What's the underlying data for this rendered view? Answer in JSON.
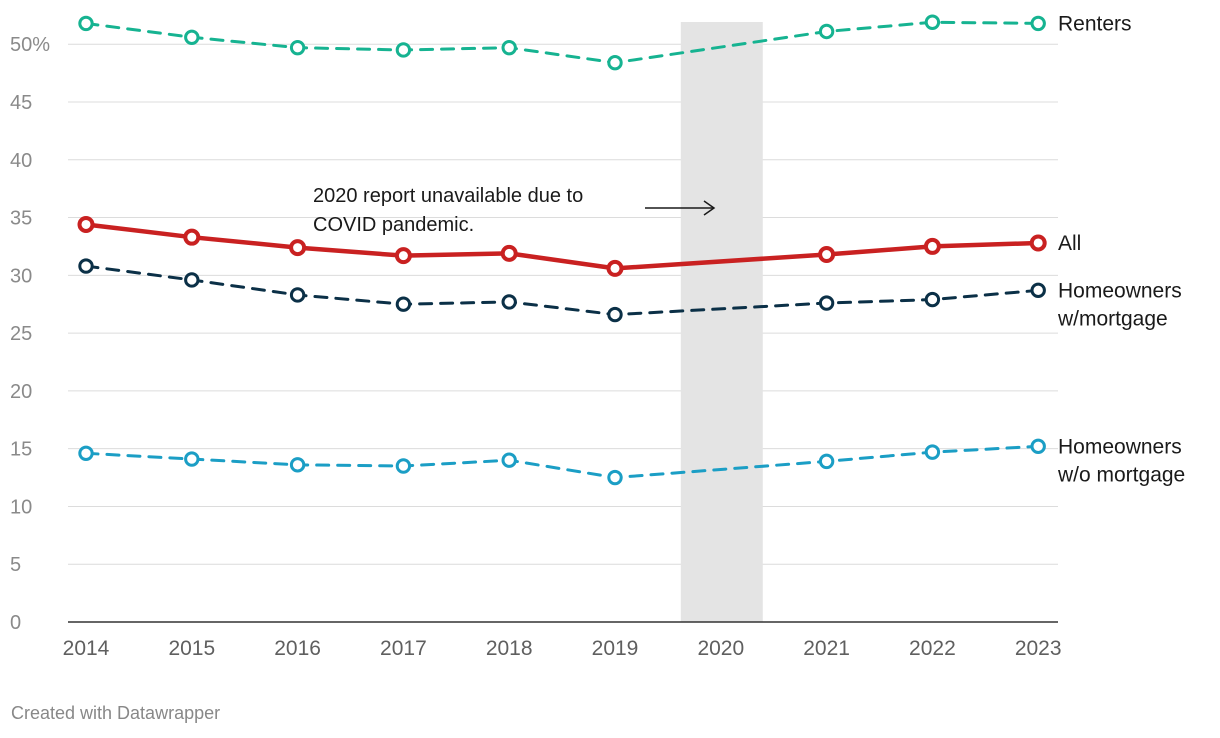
{
  "chart_data": {
    "type": "line",
    "title": "",
    "xlabel": "",
    "ylabel": "",
    "ylim": [
      0,
      52
    ],
    "y_ticks": [
      0,
      5,
      10,
      15,
      20,
      25,
      30,
      35,
      40,
      45,
      50
    ],
    "y_tick_labels": [
      "0",
      "5",
      "10",
      "15",
      "20",
      "25",
      "30",
      "35",
      "40",
      "45",
      "50%"
    ],
    "categories": [
      "2014",
      "2015",
      "2016",
      "2017",
      "2018",
      "2019",
      "2020",
      "2021",
      "2022",
      "2023"
    ],
    "series": [
      {
        "name": "Renters",
        "label_lines": [
          "Renters"
        ],
        "color": "#16b391",
        "dashed": true,
        "values": [
          51.8,
          50.6,
          49.7,
          49.5,
          49.7,
          48.4,
          null,
          51.1,
          51.9,
          51.8
        ]
      },
      {
        "name": "All",
        "label_lines": [
          "All"
        ],
        "color": "#c92121",
        "dashed": false,
        "values": [
          34.4,
          33.3,
          32.4,
          31.7,
          31.9,
          30.6,
          null,
          31.8,
          32.5,
          32.8
        ]
      },
      {
        "name": "Homeowners w/mortgage",
        "label_lines": [
          "Homeowners",
          "w/mortgage"
        ],
        "color": "#0b3047",
        "dashed": true,
        "values": [
          30.8,
          29.6,
          28.3,
          27.5,
          27.7,
          26.6,
          null,
          27.6,
          27.9,
          28.7
        ]
      },
      {
        "name": "Homeowners w/o mortgage",
        "label_lines": [
          "Homeowners",
          "w/o mortgage"
        ],
        "color": "#1b9ec5",
        "dashed": true,
        "values": [
          14.6,
          14.1,
          13.6,
          13.5,
          14.0,
          12.5,
          null,
          13.9,
          14.7,
          15.2
        ]
      }
    ],
    "shaded_category": "2020",
    "annotation": {
      "lines": [
        "2020 report unavailable due to",
        "COVID pandemic."
      ],
      "points_to": "2020"
    },
    "colors": {
      "gridline": "#dcdcdc",
      "axis": "#333333",
      "shade": "#e4e4e4"
    }
  },
  "footer": {
    "credit": "Created with Datawrapper"
  }
}
